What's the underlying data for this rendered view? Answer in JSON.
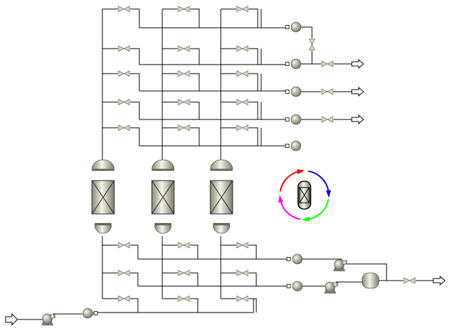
{
  "canvas": {
    "background": "#ffffff",
    "line_color": "#000000",
    "equipment_fill_light": "#f2f2e6",
    "equipment_fill_dark": "#8a8a78"
  },
  "diagram": {
    "kind": "process-flowsheet",
    "columns": [
      {
        "name": "adsorber-1"
      },
      {
        "name": "adsorber-2"
      },
      {
        "name": "adsorber-3"
      }
    ],
    "cycle_icon": {
      "arrow_colors": [
        "#ff0000",
        "#0000ff",
        "#00ff00",
        "#ff00ff"
      ]
    },
    "icons": [
      "valve-icon",
      "mixer-icon",
      "compressor-icon",
      "separator-drum-icon",
      "feed-arrow-icon",
      "product-arrow-icon",
      "cycle-icon"
    ]
  }
}
